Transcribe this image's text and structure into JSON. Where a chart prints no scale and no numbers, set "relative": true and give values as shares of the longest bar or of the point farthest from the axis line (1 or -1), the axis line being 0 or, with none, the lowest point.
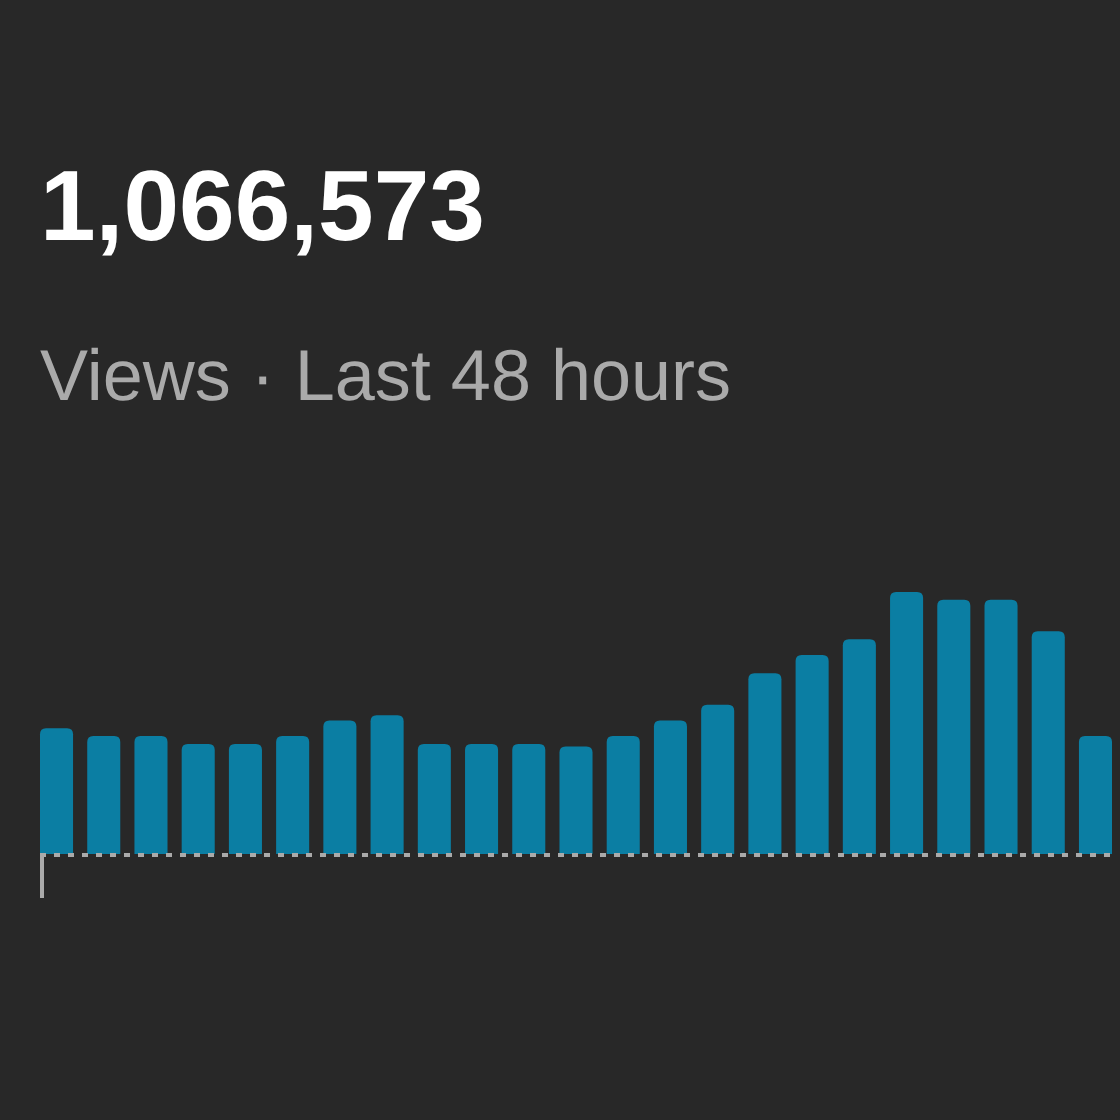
{
  "chart_data": {
    "type": "bar",
    "title": "1,066,573",
    "subtitle": "Views · Last 48 hours",
    "relative": true,
    "color": "#0b7ea3",
    "categories": [
      null,
      null,
      null,
      null,
      null,
      null,
      null,
      null,
      null,
      null,
      null,
      null,
      null,
      null,
      null,
      null,
      null,
      null,
      null,
      null,
      null,
      null,
      null
    ],
    "values": [
      0.48,
      0.45,
      0.45,
      0.42,
      0.42,
      0.45,
      0.51,
      0.53,
      0.42,
      0.42,
      0.42,
      0.41,
      0.45,
      0.51,
      0.57,
      0.69,
      0.76,
      0.82,
      1,
      0.97,
      0.97,
      0.85,
      0.45
    ]
  }
}
